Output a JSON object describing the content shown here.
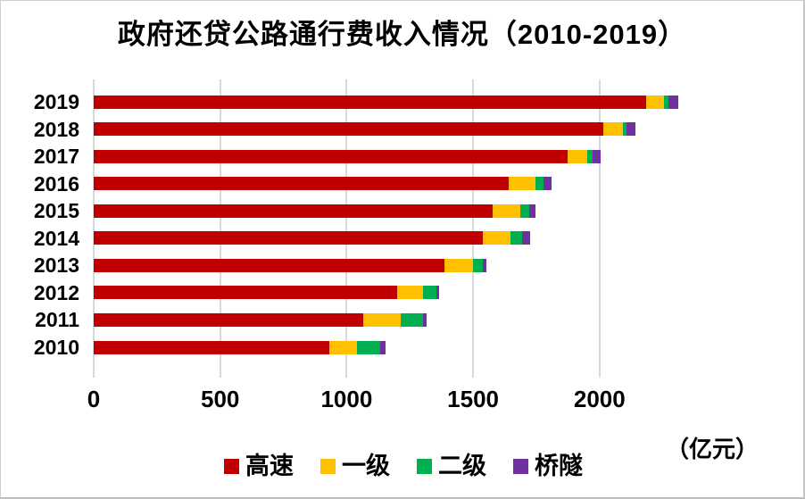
{
  "title": "政府还贷公路通行费收入情况（2010-2019）",
  "unit_label": "（亿元）",
  "colors": {
    "highway": "#C00000",
    "first_class": "#FFC000",
    "second_class": "#00B050",
    "bridge_tunnel": "#7030A0",
    "gridline": "#D9D9D9",
    "text": "#000000",
    "background": "#FFFFFF"
  },
  "chart_data": {
    "type": "bar",
    "orientation": "horizontal",
    "stacked": true,
    "title": "政府还贷公路通行费收入情况（2010-2019）",
    "unit": "亿元",
    "categories": [
      "2019",
      "2018",
      "2017",
      "2016",
      "2015",
      "2014",
      "2013",
      "2012",
      "2011",
      "2010"
    ],
    "series": [
      {
        "name": "高速",
        "color": "#C00000",
        "values": [
          2184,
          2014,
          1875,
          1642,
          1577,
          1540,
          1386,
          1199,
          1067,
          930
        ]
      },
      {
        "name": "一级",
        "color": "#FFC000",
        "values": [
          72,
          80,
          78,
          104,
          109,
          108,
          112,
          103,
          146,
          110
        ]
      },
      {
        "name": "二级",
        "color": "#00B050",
        "values": [
          16,
          14,
          18,
          34,
          36,
          47,
          41,
          52,
          88,
          93
        ]
      },
      {
        "name": "桥隧",
        "color": "#7030A0",
        "values": [
          38,
          35,
          33,
          29,
          26,
          32,
          12,
          11,
          14,
          20
        ]
      }
    ],
    "totals_approx": [
      2310,
      2143,
      2004,
      1809,
      1748,
      1727,
      1551,
      1365,
      1315,
      1153
    ],
    "x_ticks": [
      0,
      500,
      1000,
      1500,
      2000
    ],
    "x_tick_labels": [
      "0",
      "500",
      "1000",
      "1500",
      "2000"
    ],
    "grid": "vertical",
    "legend_position": "bottom"
  },
  "legend": {
    "items": [
      {
        "label": "高速",
        "color": "#C00000"
      },
      {
        "label": "一级",
        "color": "#FFC000"
      },
      {
        "label": "二级",
        "color": "#00B050"
      },
      {
        "label": "桥隧",
        "color": "#7030A0"
      }
    ]
  }
}
